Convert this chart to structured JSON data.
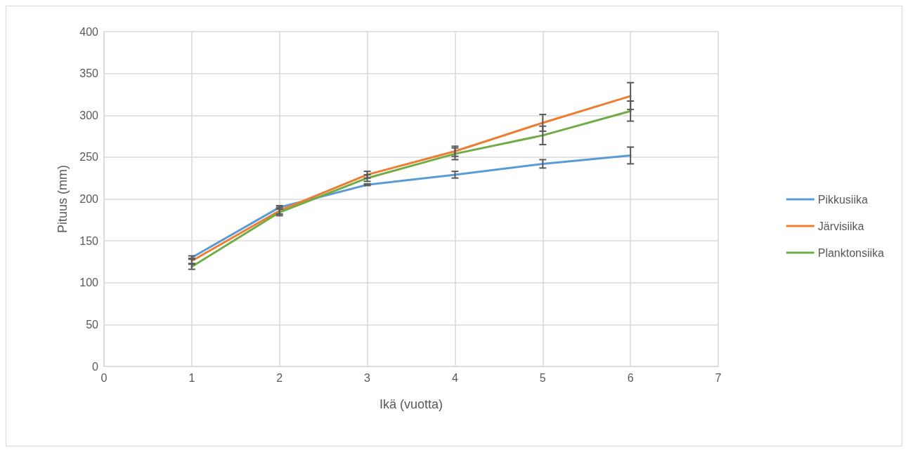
{
  "chart_data": {
    "type": "line",
    "xlabel": "Ikä (vuotta)",
    "ylabel": "Pituus (mm)",
    "x": [
      1,
      2,
      3,
      4,
      5,
      6
    ],
    "xlim": [
      0,
      7
    ],
    "xticks": [
      0,
      1,
      2,
      3,
      4,
      5,
      6,
      7
    ],
    "ylim": [
      0,
      400
    ],
    "yticks": [
      0,
      50,
      100,
      150,
      200,
      250,
      300,
      350,
      400
    ],
    "grid": true,
    "legend": "right",
    "marker": "none",
    "series": [
      {
        "name": "Pikkusiika",
        "color": "#5b9bd5",
        "values": [
          130,
          190,
          217,
          229,
          242,
          252
        ],
        "errors": [
          2,
          2,
          1,
          4,
          5,
          10
        ]
      },
      {
        "name": "Järvisiika",
        "color": "#ed7d31",
        "values": [
          126,
          186,
          229,
          257,
          291,
          323
        ],
        "errors": [
          3,
          4,
          4,
          6,
          10,
          16
        ]
      },
      {
        "name": "Planktonsiika",
        "color": "#70ad47",
        "values": [
          119,
          184,
          225,
          254,
          276,
          305
        ],
        "errors": [
          3,
          4,
          4,
          7,
          11,
          12
        ]
      }
    ]
  }
}
